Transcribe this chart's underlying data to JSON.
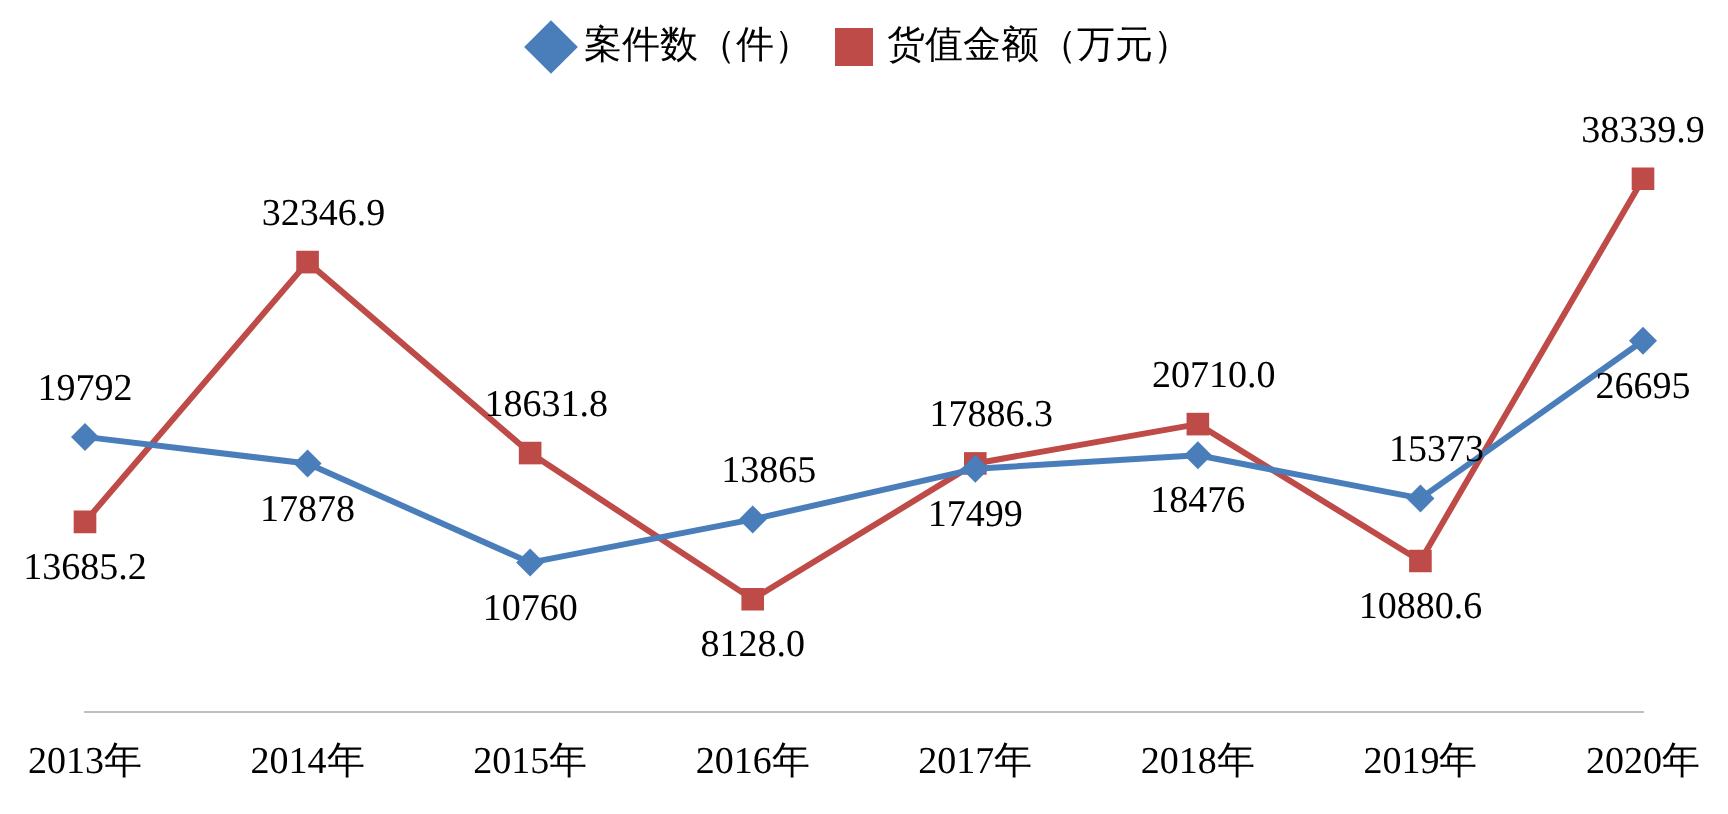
{
  "chart_data": {
    "type": "line",
    "categories": [
      "2013年",
      "2014年",
      "2015年",
      "2016年",
      "2017年",
      "2018年",
      "2019年",
      "2020年"
    ],
    "series": [
      {
        "name": "案件数（件）",
        "color": "#4a7ebb",
        "marker": "diamond",
        "values": [
          19792,
          17878,
          10760,
          13865,
          17499,
          18476,
          15373,
          26695
        ],
        "value_labels": [
          "19792",
          "17878",
          "10760",
          "13865",
          "17499",
          "18476",
          "15373",
          "26695"
        ]
      },
      {
        "name": "货值金额（万元）",
        "color": "#be4b48",
        "marker": "square",
        "values": [
          13685.2,
          32346.9,
          18631.8,
          8128.0,
          17886.3,
          20710.0,
          10880.6,
          38339.9
        ],
        "value_labels": [
          "13685.2",
          "32346.9",
          "18631.8",
          "8128.0",
          "17886.3",
          "20710.0",
          "10880.6",
          "38339.9"
        ]
      }
    ],
    "grid": false,
    "legend": "top",
    "line_style": "solid"
  }
}
